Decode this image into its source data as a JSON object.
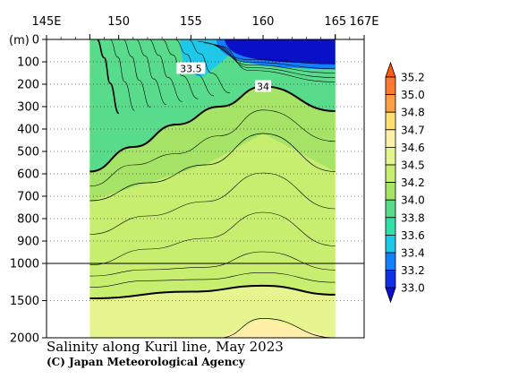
{
  "chart_data": {
    "type": "heatmap",
    "title": "Salinity along Kuril line, May 2023",
    "credit": "(C) Japan Meteorological Agency",
    "x_axis": {
      "ticks": [
        {
          "value": 145,
          "label": "145E"
        },
        {
          "value": 150,
          "label": "150"
        },
        {
          "value": 155,
          "label": "155"
        },
        {
          "value": 160,
          "label": "160"
        },
        {
          "value": 165,
          "label": "165"
        },
        {
          "value": 167,
          "label": "167E"
        }
      ],
      "range": [
        145,
        167
      ]
    },
    "y_axis": {
      "unit_label": "(m)",
      "upper_ticks": [
        0,
        100,
        200,
        300,
        400,
        500,
        600,
        700,
        800,
        900,
        1000
      ],
      "lower_ticks": [
        1500,
        2000
      ],
      "range": [
        0,
        2000
      ],
      "scale_break_depth": 1000
    },
    "data_x_range": [
      148.0,
      165.0
    ],
    "colorbar": {
      "levels": [
        "35.2",
        "35.0",
        "34.8",
        "34.7",
        "34.6",
        "34.5",
        "34.2",
        "34.0",
        "33.8",
        "33.6",
        "33.4",
        "33.2",
        "33.0"
      ],
      "colors": {
        "above_35_2": "#ff5a10",
        "35_0_to_35_2": "#ff7a30",
        "34_8_to_35_0": "#ff9f45",
        "34_7_to_34_8": "#ffe070",
        "34_6_to_34_7": "#fff0a8",
        "34_5_to_34_6": "#e6f58f",
        "34_2_to_34_5": "#c8ee70",
        "34_0_to_34_2": "#a6e468",
        "33_8_to_34_0": "#58dc8c",
        "33_6_to_33_8": "#30e0a8",
        "33_4_to_33_6": "#1ec8e8",
        "33_2_to_33_4": "#1080ff",
        "33_0_to_33_2": "#1030e8",
        "below_33_0": "#0a10c8"
      }
    },
    "contour_labels": [
      {
        "text": "33.5",
        "lon": 155.0,
        "depth": 130
      },
      {
        "text": "34",
        "lon": 160.0,
        "depth": 210
      }
    ],
    "section": {
      "surface_fresh_core": {
        "lon_range": [
          157.5,
          165.0
        ],
        "depth_range": [
          0,
          110
        ],
        "salinity_max": 33.2
      },
      "salinity_33_5_pocket": {
        "lon_center": 155.0,
        "depth_bottom": 190
      },
      "isohaline_34_0": [
        {
          "lon": 148.0,
          "depth": 590
        },
        {
          "lon": 151.0,
          "depth": 480
        },
        {
          "lon": 154.0,
          "depth": 380
        },
        {
          "lon": 157.0,
          "depth": 300
        },
        {
          "lon": 160.0,
          "depth": 210
        },
        {
          "lon": 165.0,
          "depth": 320
        }
      ],
      "isohaline_34_2": [
        {
          "lon": 148.0,
          "depth": 720
        },
        {
          "lon": 152.0,
          "depth": 640
        },
        {
          "lon": 156.0,
          "depth": 560
        },
        {
          "lon": 160.0,
          "depth": 420
        },
        {
          "lon": 165.0,
          "depth": 590
        }
      ],
      "isohaline_34_5_deep": [
        {
          "lon": 148.0,
          "depth": 1470
        },
        {
          "lon": 155.0,
          "depth": 1380
        },
        {
          "lon": 160.0,
          "depth": 1300
        },
        {
          "lon": 165.0,
          "depth": 1420
        }
      ],
      "isohaline_34_6": [
        {
          "lon": 157.0,
          "depth": 2000
        },
        {
          "lon": 160.0,
          "depth": 1740
        },
        {
          "lon": 165.0,
          "depth": 2000
        }
      ]
    }
  }
}
